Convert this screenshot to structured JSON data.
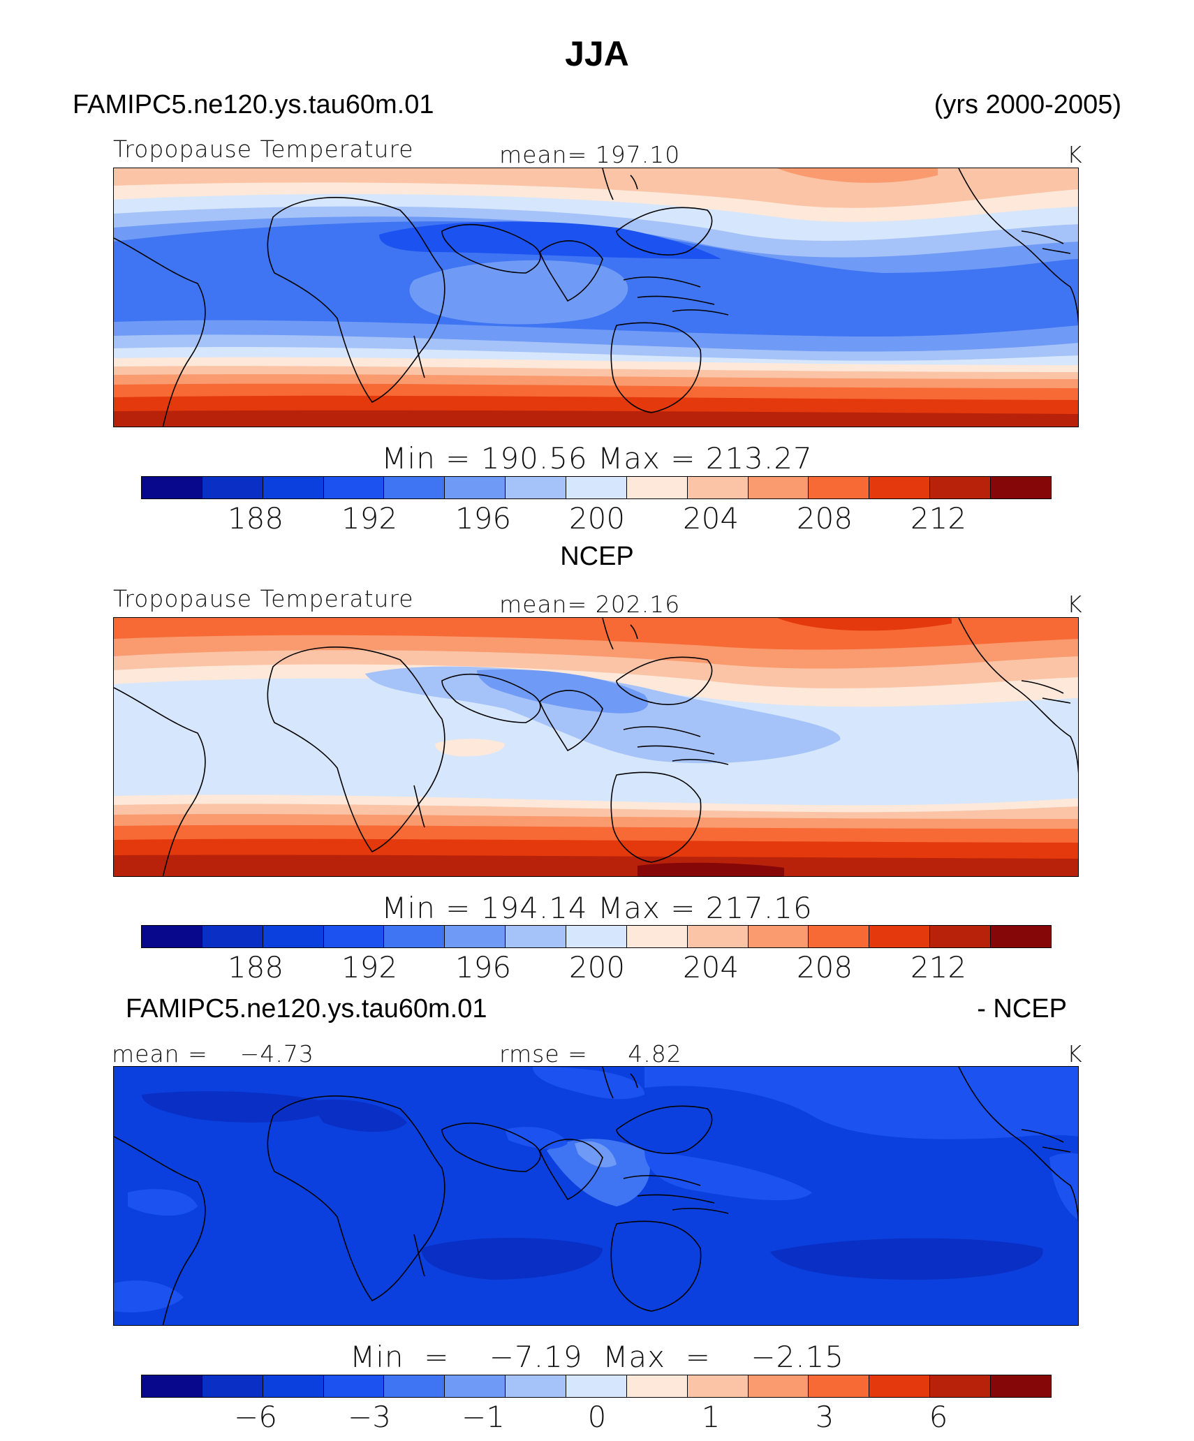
{
  "title": "JJA",
  "case_name": "FAMIPC5.ne120.ys.tau60m.01",
  "years": "(yrs 2000-2005)",
  "panels": [
    {
      "id": "model",
      "heading": "",
      "field_label": "Tropopause Temperature",
      "stat_label": "mean=  197.10",
      "units": "K",
      "minmax_label": "Min  =  190.56  Max  =  213.27",
      "colorbar_ticks": [
        "188",
        "192",
        "196",
        "200",
        "204",
        "208",
        "212"
      ]
    },
    {
      "id": "obs",
      "heading": "NCEP",
      "field_label": "Tropopause Temperature",
      "stat_label": "mean=  202.16",
      "units": "K",
      "minmax_label": "Min  =  194.14  Max  =  217.16",
      "colorbar_ticks": [
        "188",
        "192",
        "196",
        "200",
        "204",
        "208",
        "212"
      ]
    },
    {
      "id": "diff",
      "heading_left": "FAMIPC5.ne120.ys.tau60m.01",
      "heading_right": "- NCEP",
      "stat_left": "mean =    −4.73",
      "stat_mid": "rmse =     4.82",
      "units": "K",
      "minmax_label": "Min  =    −7.19  Max  =    −2.15",
      "colorbar_ticks": [
        "−6",
        "−3",
        "−1",
        "0",
        "1",
        "3",
        "6"
      ]
    }
  ],
  "colors": [
    "#08088c",
    "#0a2fc4",
    "#0b40de",
    "#1b52f0",
    "#3f74f2",
    "#6f9af5",
    "#a6c3f9",
    "#d6e6fc",
    "#fde8d9",
    "#fbc4a6",
    "#f99a6f",
    "#f76935",
    "#e4390c",
    "#b8220b",
    "#860707"
  ],
  "chart_data": {
    "type": "heatmap",
    "title": "JJA",
    "variable": "Tropopause Temperature",
    "units": "K",
    "season": "JJA",
    "years": "2000-2005",
    "maps": [
      {
        "name": "FAMIPC5.ne120.ys.tau60m.01",
        "mean": 197.1,
        "min": 190.56,
        "max": 213.27,
        "contour_levels": [
          186,
          188,
          190,
          192,
          194,
          196,
          198,
          200,
          202,
          204,
          206,
          208,
          210,
          212,
          214
        ],
        "colorbar_ticks": [
          188,
          192,
          196,
          200,
          204,
          208,
          212
        ]
      },
      {
        "name": "NCEP",
        "mean": 202.16,
        "min": 194.14,
        "max": 217.16,
        "contour_levels": [
          186,
          188,
          190,
          192,
          194,
          196,
          198,
          200,
          202,
          204,
          206,
          208,
          210,
          212,
          214
        ],
        "colorbar_ticks": [
          188,
          192,
          196,
          200,
          204,
          208,
          212
        ]
      },
      {
        "name": "FAMIPC5.ne120.ys.tau60m.01 - NCEP",
        "mean": -4.73,
        "rmse": 4.82,
        "min": -7.19,
        "max": -2.15,
        "colorbar_ticks": [
          -6,
          -3,
          -1,
          0,
          1,
          3,
          6
        ]
      }
    ]
  }
}
